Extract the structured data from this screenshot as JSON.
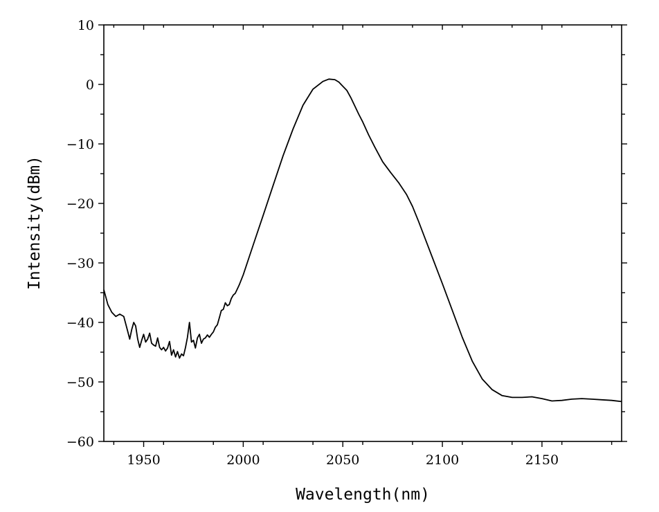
{
  "chart_data": {
    "type": "line",
    "title": "",
    "xlabel": "Wavelength(nm)",
    "ylabel": "Intensity(dBm)",
    "xlim": [
      1930,
      2190
    ],
    "ylim": [
      -60,
      10
    ],
    "x_ticks": [
      1950,
      2000,
      2050,
      2100,
      2150
    ],
    "y_ticks": [
      10,
      0,
      -10,
      -20,
      -30,
      -40,
      -50,
      -60
    ],
    "x_tick_labels": [
      "1950",
      "2000",
      "2050",
      "2100",
      "2150"
    ],
    "y_tick_labels": [
      "10",
      "0",
      "-10",
      "-20",
      "-30",
      "-40",
      "-50",
      "-60"
    ],
    "grid": false,
    "line_color": "#000000",
    "series": [
      {
        "x": [
          1930,
          1932,
          1934,
          1936,
          1938,
          1940,
          1942,
          1943,
          1944,
          1945,
          1946,
          1947,
          1948,
          1949,
          1950,
          1951,
          1952,
          1953,
          1954,
          1955,
          1956,
          1957,
          1958,
          1959,
          1960,
          1961,
          1962,
          1963,
          1964,
          1965,
          1966,
          1967,
          1968,
          1969,
          1970,
          1971,
          1972,
          1973,
          1974,
          1975,
          1976,
          1977,
          1978,
          1979,
          1980,
          1981,
          1982,
          1983,
          1984,
          1985,
          1986,
          1987,
          1988,
          1989,
          1990,
          1991,
          1992,
          1993,
          1994,
          1995,
          1996,
          1997,
          1998,
          2000,
          2003,
          2006,
          2010,
          2015,
          2020,
          2025,
          2030,
          2035,
          2040,
          2043,
          2046,
          2048,
          2050,
          2052,
          2054,
          2056,
          2058,
          2060,
          2063,
          2066,
          2070,
          2074,
          2078,
          2082,
          2085,
          2088,
          2092,
          2096,
          2100,
          2105,
          2110,
          2115,
          2120,
          2125,
          2130,
          2135,
          2140,
          2145,
          2150,
          2155,
          2160,
          2165,
          2170,
          2175,
          2180,
          2185,
          2190
        ],
        "y": [
          -34.5,
          -37.0,
          -38.3,
          -39.0,
          -38.6,
          -39.0,
          -41.5,
          -42.8,
          -41.2,
          -40.0,
          -40.6,
          -42.8,
          -44.2,
          -43.0,
          -42.0,
          -43.3,
          -42.8,
          -41.8,
          -43.5,
          -43.8,
          -44.0,
          -42.6,
          -44.2,
          -44.6,
          -44.2,
          -44.8,
          -44.3,
          -43.2,
          -45.5,
          -44.6,
          -45.8,
          -44.9,
          -46.0,
          -45.3,
          -45.6,
          -44.2,
          -42.5,
          -40.0,
          -43.3,
          -43.0,
          -44.3,
          -42.6,
          -42.0,
          -43.5,
          -42.8,
          -42.6,
          -42.1,
          -42.5,
          -42.0,
          -41.6,
          -40.8,
          -40.4,
          -39.2,
          -38.0,
          -37.8,
          -36.7,
          -37.2,
          -37.0,
          -36.0,
          -35.4,
          -35.1,
          -34.4,
          -33.7,
          -32.0,
          -29.0,
          -26.0,
          -22.0,
          -17.0,
          -12.0,
          -7.5,
          -3.5,
          -0.8,
          0.5,
          0.9,
          0.8,
          0.4,
          -0.3,
          -1.0,
          -2.2,
          -3.6,
          -5.0,
          -6.3,
          -8.5,
          -10.5,
          -13.0,
          -14.8,
          -16.5,
          -18.5,
          -20.5,
          -23.0,
          -26.5,
          -30.0,
          -33.5,
          -38.0,
          -42.5,
          -46.5,
          -49.5,
          -51.3,
          -52.3,
          -52.6,
          -52.6,
          -52.5,
          -52.8,
          -53.2,
          -53.1,
          -52.9,
          -52.8,
          -52.9,
          -53.0,
          -53.1,
          -53.3
        ]
      }
    ]
  }
}
